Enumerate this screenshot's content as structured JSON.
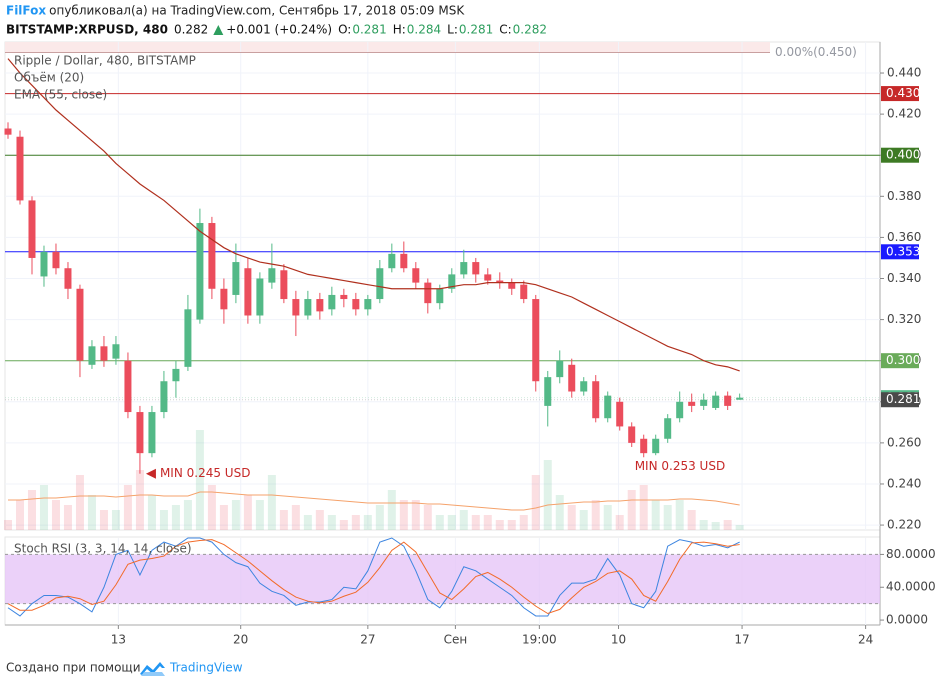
{
  "header": {
    "author": "FilFox",
    "published": "опубликовал(а) на TradingView.com, Сентябрь 17, 2018 05:09 MSK",
    "symbol": "BITSTAMP:XRPUSD, 480",
    "price": "0.282",
    "change": "+0.001 (+0.24%)",
    "ohlc": [
      {
        "key": "O:",
        "value": "0.281"
      },
      {
        "key": "H:",
        "value": "0.284"
      },
      {
        "key": "L:",
        "value": "0.281"
      },
      {
        "key": "C:",
        "value": "0.282"
      }
    ]
  },
  "chart_data": [
    {
      "type": "candlestick",
      "title": "Ripple / Dollar, 480, BITSTAMP",
      "xlim": [
        -0.25,
        72.7
      ],
      "xticks": [
        {
          "value": 9.2,
          "label": "13"
        },
        {
          "value": 19.4,
          "label": "20"
        },
        {
          "value": 30,
          "label": "27"
        },
        {
          "value": 37.3,
          "label": "Сен"
        },
        {
          "value": 44.3,
          "label": "19:00"
        },
        {
          "value": 50.9,
          "label": "10"
        },
        {
          "value": 61.2,
          "label": "17"
        },
        {
          "value": 71.5,
          "label": "24"
        }
      ],
      "ylim": [
        0.2176,
        0.4551
      ],
      "yticks": [
        {
          "value": 0.22,
          "label": "0.220"
        },
        {
          "value": 0.24,
          "label": "0.240"
        },
        {
          "value": 0.26,
          "label": "0.260"
        },
        {
          "value": 0.28,
          "label": "0.280"
        },
        {
          "value": 0.3,
          "label": "0.300"
        },
        {
          "value": 0.32,
          "label": "0.320"
        },
        {
          "value": 0.34,
          "label": "0.340"
        },
        {
          "value": 0.36,
          "label": "0.360"
        },
        {
          "value": 0.38,
          "label": "0.380"
        },
        {
          "value": 0.4,
          "label": "0.400"
        },
        {
          "value": 0.42,
          "label": "0.420"
        },
        {
          "value": 0.44,
          "label": "0.440"
        }
      ],
      "grid": true,
      "up_color": "#53b987",
      "down_color": "#eb4d5c",
      "open": [
        0.413,
        0.409,
        0.378,
        0.341,
        0.353,
        0.345,
        0.335,
        0.298,
        0.307,
        0.301,
        0.3,
        0.275,
        0.255,
        0.275,
        0.29,
        0.297,
        0.32,
        0.367,
        0.335,
        0.332,
        0.345,
        0.322,
        0.338,
        0.344,
        0.33,
        0.322,
        0.33,
        0.325,
        0.332,
        0.33,
        0.325,
        0.33,
        0.345,
        0.352,
        0.345,
        0.338,
        0.328,
        0.335,
        0.342,
        0.348,
        0.342,
        0.339,
        0.338,
        0.337,
        0.33,
        0.278,
        0.292,
        0.298,
        0.285,
        0.29,
        0.272,
        0.28,
        0.268,
        0.262,
        0.255,
        0.262,
        0.272,
        0.28,
        0.278,
        0.277,
        0.283,
        0.281
      ],
      "high": [
        0.416,
        0.412,
        0.38,
        0.356,
        0.357,
        0.348,
        0.337,
        0.31,
        0.312,
        0.312,
        0.304,
        0.278,
        0.278,
        0.295,
        0.3,
        0.332,
        0.374,
        0.37,
        0.34,
        0.357,
        0.35,
        0.343,
        0.357,
        0.347,
        0.334,
        0.334,
        0.333,
        0.336,
        0.335,
        0.333,
        0.332,
        0.349,
        0.357,
        0.358,
        0.348,
        0.34,
        0.337,
        0.345,
        0.354,
        0.35,
        0.345,
        0.343,
        0.34,
        0.339,
        0.332,
        0.295,
        0.305,
        0.301,
        0.292,
        0.293,
        0.285,
        0.282,
        0.27,
        0.264,
        0.264,
        0.274,
        0.285,
        0.284,
        0.284,
        0.285,
        0.285,
        0.284
      ],
      "low": [
        0.408,
        0.376,
        0.342,
        0.336,
        0.342,
        0.33,
        0.292,
        0.296,
        0.297,
        0.298,
        0.272,
        0.245,
        0.253,
        0.272,
        0.282,
        0.295,
        0.318,
        0.33,
        0.318,
        0.328,
        0.318,
        0.318,
        0.335,
        0.328,
        0.312,
        0.32,
        0.32,
        0.322,
        0.326,
        0.322,
        0.322,
        0.328,
        0.343,
        0.343,
        0.335,
        0.323,
        0.325,
        0.333,
        0.34,
        0.338,
        0.337,
        0.335,
        0.332,
        0.328,
        0.285,
        0.268,
        0.289,
        0.282,
        0.283,
        0.27,
        0.27,
        0.266,
        0.258,
        0.253,
        0.254,
        0.26,
        0.27,
        0.275,
        0.276,
        0.276,
        0.276,
        0.281
      ],
      "close": [
        0.41,
        0.378,
        0.35,
        0.353,
        0.345,
        0.335,
        0.3,
        0.307,
        0.3,
        0.308,
        0.275,
        0.255,
        0.275,
        0.29,
        0.296,
        0.325,
        0.367,
        0.335,
        0.325,
        0.348,
        0.322,
        0.34,
        0.345,
        0.33,
        0.322,
        0.33,
        0.324,
        0.332,
        0.33,
        0.325,
        0.33,
        0.345,
        0.352,
        0.345,
        0.338,
        0.328,
        0.335,
        0.342,
        0.348,
        0.342,
        0.339,
        0.338,
        0.335,
        0.33,
        0.29,
        0.292,
        0.3,
        0.285,
        0.29,
        0.272,
        0.283,
        0.268,
        0.26,
        0.255,
        0.262,
        0.272,
        0.28,
        0.278,
        0.281,
        0.283,
        0.278,
        0.282
      ],
      "ema": {
        "name": "EMA (55, close)",
        "color": "#b0301e",
        "values": [
          0.447,
          0.44,
          0.434,
          0.428,
          0.422,
          0.417,
          0.412,
          0.407,
          0.402,
          0.396,
          0.391,
          0.386,
          0.382,
          0.378,
          0.373,
          0.368,
          0.363,
          0.359,
          0.355,
          0.352,
          0.35,
          0.348,
          0.347,
          0.346,
          0.344,
          0.342,
          0.341,
          0.34,
          0.339,
          0.338,
          0.337,
          0.336,
          0.335,
          0.335,
          0.335,
          0.335,
          0.335,
          0.336,
          0.337,
          0.337,
          0.338,
          0.338,
          0.338,
          0.338,
          0.337,
          0.335,
          0.333,
          0.331,
          0.328,
          0.325,
          0.322,
          0.319,
          0.316,
          0.313,
          0.31,
          0.307,
          0.305,
          0.303,
          0.3,
          0.298,
          0.297,
          0.295
        ]
      },
      "volume": {
        "name": "Объём (20)",
        "ylim": [
          0,
          488
        ],
        "ma_color": "#f5a26b",
        "values": [
          10,
          30,
          40,
          45,
          30,
          25,
          55,
          35,
          20,
          20,
          45,
          60,
          35,
          20,
          25,
          30,
          100,
          45,
          25,
          30,
          35,
          30,
          55,
          20,
          25,
          15,
          20,
          15,
          10,
          15,
          15,
          25,
          40,
          30,
          30,
          25,
          15,
          15,
          20,
          15,
          15,
          10,
          10,
          15,
          55,
          70,
          35,
          25,
          20,
          30,
          25,
          15,
          40,
          45,
          30,
          25,
          30,
          20,
          10,
          8,
          10,
          5
        ],
        "ma": [
          30,
          30,
          31,
          32,
          32,
          33,
          34,
          34,
          34,
          33,
          34,
          35,
          35,
          34,
          34,
          34,
          38,
          38,
          37,
          36,
          35,
          35,
          35,
          34,
          33,
          32,
          31,
          30,
          29,
          28,
          27,
          27,
          27,
          27,
          27,
          26,
          26,
          25,
          24,
          23,
          22,
          21,
          20,
          20,
          22,
          25,
          26,
          27,
          28,
          28,
          29,
          29,
          30,
          30,
          30,
          30,
          31,
          31,
          30,
          29,
          27,
          25
        ]
      },
      "levels": [
        {
          "value": 0.43,
          "label": "0.430",
          "color": "#c62828"
        },
        {
          "value": 0.4,
          "label": "0.400",
          "color": "#3d7a24"
        },
        {
          "value": 0.353,
          "label": "0.353",
          "color": "#1a1aff"
        },
        {
          "value": 0.3,
          "label": "0.300",
          "color": "#6aab5a"
        }
      ],
      "last_prices": [
        {
          "value": 0.282,
          "label": "0.282",
          "color": "#53b987"
        },
        {
          "value": 0.281,
          "label": "0.281",
          "color": "#4a4a4a"
        }
      ],
      "fib": {
        "value": 0.45,
        "label": "0.00%(0.450)"
      },
      "annotations": [
        {
          "text": "MIN 0.245 USD",
          "x": 11,
          "y": 0.245,
          "color": "#c62828"
        },
        {
          "text": "MIN 0.253 USD",
          "x": 53,
          "y": 0.253,
          "color": "#c62828"
        }
      ]
    },
    {
      "type": "line",
      "title": "Stoch RSI (3, 3, 14, 14, close)",
      "ylim": [
        -6,
        100
      ],
      "yticks": [
        {
          "value": 0,
          "label": "0.0000"
        },
        {
          "value": 40,
          "label": "40.0000"
        },
        {
          "value": 80,
          "label": "80.0000"
        }
      ],
      "band": [
        20,
        80
      ],
      "band_color": "#e6c6f7",
      "series": [
        {
          "color": "#3d85e0",
          "values": [
            15,
            5,
            20,
            30,
            30,
            28,
            20,
            10,
            40,
            80,
            85,
            55,
            85,
            95,
            90,
            100,
            100,
            95,
            80,
            70,
            65,
            45,
            35,
            30,
            18,
            22,
            22,
            25,
            40,
            38,
            60,
            95,
            100,
            90,
            60,
            25,
            15,
            35,
            65,
            60,
            50,
            40,
            30,
            15,
            5,
            5,
            30,
            45,
            45,
            50,
            75,
            55,
            20,
            15,
            35,
            90,
            98,
            95,
            90,
            92,
            88,
            95
          ]
        },
        {
          "color": "#f26b2a",
          "values": [
            20,
            12,
            12,
            18,
            27,
            29,
            26,
            19,
            23,
            43,
            68,
            73,
            75,
            78,
            90,
            95,
            97,
            98,
            92,
            82,
            72,
            60,
            48,
            37,
            28,
            23,
            21,
            23,
            29,
            34,
            46,
            64,
            85,
            95,
            83,
            58,
            33,
            25,
            38,
            53,
            58,
            50,
            40,
            28,
            17,
            8,
            13,
            27,
            40,
            47,
            57,
            60,
            50,
            30,
            23,
            47,
            74,
            94,
            95,
            93,
            90,
            92
          ]
        }
      ]
    }
  ],
  "footer": {
    "text": "Создано при помощи",
    "brand": "TradingView"
  }
}
